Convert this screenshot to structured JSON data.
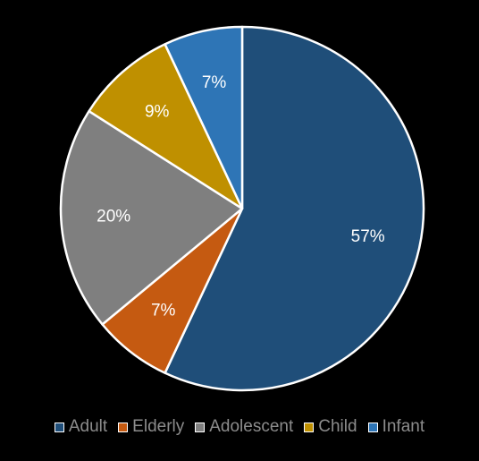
{
  "chart_data": {
    "type": "pie",
    "title": "",
    "start_angle_deg": 0,
    "direction": "clockwise",
    "slices": [
      {
        "name": "Adult",
        "value": 57,
        "label": "57%",
        "color": "#1f4e79"
      },
      {
        "name": "Elderly",
        "value": 7,
        "label": "7%",
        "color": "#c55a11"
      },
      {
        "name": "Adolescent",
        "value": 20,
        "label": "20%",
        "color": "#7f7f7f"
      },
      {
        "name": "Child",
        "value": 9,
        "label": "9%",
        "color": "#bf9000"
      },
      {
        "name": "Infant",
        "value": 7,
        "label": "7%",
        "color": "#2e75b6"
      }
    ],
    "legend": {
      "placement": "bottom",
      "entries": [
        "Adult",
        "Elderly",
        "Adolescent",
        "Child",
        "Infant"
      ]
    },
    "slice_border_color": "#ffffff",
    "label_color": "#ffffff",
    "legend_text_color": "#8c8c8c",
    "background": "#000000"
  }
}
